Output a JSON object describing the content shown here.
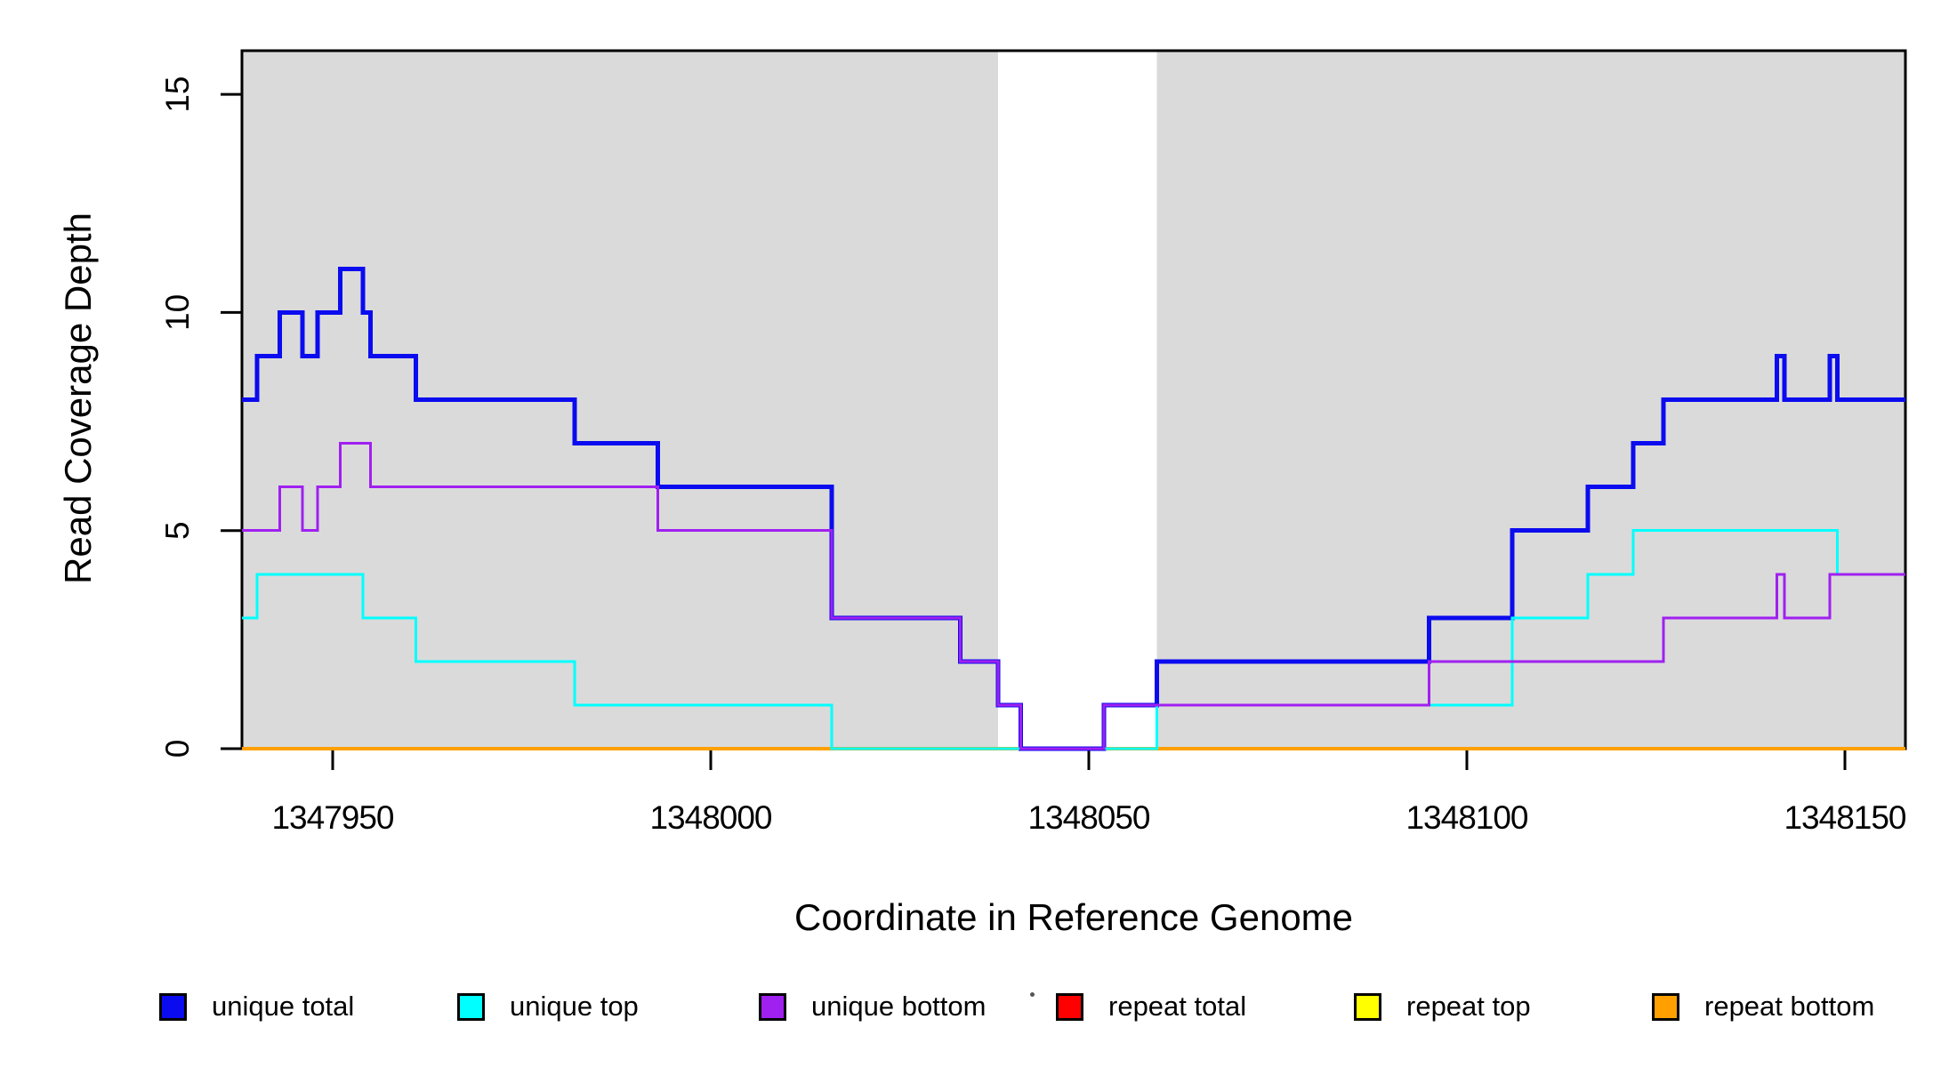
{
  "legend": {
    "items": [
      {
        "label": "unique total",
        "color": "#0B0BEF"
      },
      {
        "label": "unique top",
        "color": "#00FFFF"
      },
      {
        "label": "unique bottom",
        "color": "#A020F0"
      },
      {
        "label": "repeat total",
        "color": "#FF0000"
      },
      {
        "label": "repeat top",
        "color": "#FFFF00"
      },
      {
        "label": "repeat bottom",
        "color": "#FFA000"
      }
    ]
  },
  "chart_data": {
    "type": "line",
    "subtype": "step",
    "xlabel": "Coordinate in Reference Genome",
    "ylabel": "Read Coverage Depth",
    "xlim": [
      1347938,
      1348158
    ],
    "ylim": [
      0,
      16
    ],
    "x_ticks": [
      1347950,
      1348000,
      1348050,
      1348100,
      1348150
    ],
    "y_ticks": [
      0,
      5,
      10,
      15
    ],
    "grid": false,
    "legend_position": "bottom",
    "shade_color": "#DADADA",
    "shaded_regions": [
      [
        1347938,
        1348038
      ],
      [
        1348059,
        1348158
      ]
    ],
    "draw_order": [
      "repeat total",
      "repeat top",
      "repeat bottom",
      "unique total",
      "unique top",
      "unique bottom"
    ],
    "series": [
      {
        "name": "unique total",
        "color": "#0B0BEF",
        "width": 5,
        "points": [
          [
            1347938,
            8
          ],
          [
            1347940,
            9
          ],
          [
            1347943,
            10
          ],
          [
            1347946,
            9
          ],
          [
            1347948,
            10
          ],
          [
            1347951,
            11
          ],
          [
            1347954,
            10
          ],
          [
            1347955,
            9
          ],
          [
            1347961,
            8
          ],
          [
            1347982,
            7
          ],
          [
            1347993,
            6
          ],
          [
            1348016,
            3
          ],
          [
            1348033,
            2
          ],
          [
            1348038,
            1
          ],
          [
            1348041,
            0
          ],
          [
            1348052,
            1
          ],
          [
            1348059,
            2
          ],
          [
            1348095,
            3
          ],
          [
            1348106,
            5
          ],
          [
            1348116,
            6
          ],
          [
            1348122,
            7
          ],
          [
            1348126,
            8
          ],
          [
            1348141,
            9
          ],
          [
            1348142,
            8
          ],
          [
            1348148,
            9
          ],
          [
            1348149,
            8
          ]
        ]
      },
      {
        "name": "unique top",
        "color": "#00FFFF",
        "width": 3,
        "points": [
          [
            1347938,
            3
          ],
          [
            1347940,
            4
          ],
          [
            1347954,
            3
          ],
          [
            1347961,
            2
          ],
          [
            1347982,
            1
          ],
          [
            1348016,
            0
          ],
          [
            1348059,
            1
          ],
          [
            1348106,
            3
          ],
          [
            1348116,
            4
          ],
          [
            1348122,
            5
          ],
          [
            1348149,
            4
          ]
        ]
      },
      {
        "name": "unique bottom",
        "color": "#A020F0",
        "width": 3,
        "points": [
          [
            1347938,
            5
          ],
          [
            1347943,
            6
          ],
          [
            1347946,
            5
          ],
          [
            1347948,
            6
          ],
          [
            1347951,
            7
          ],
          [
            1347955,
            6
          ],
          [
            1347993,
            5
          ],
          [
            1348016,
            3
          ],
          [
            1348033,
            2
          ],
          [
            1348038,
            1
          ],
          [
            1348041,
            0
          ],
          [
            1348052,
            1
          ],
          [
            1348095,
            2
          ],
          [
            1348126,
            3
          ],
          [
            1348141,
            4
          ],
          [
            1348142,
            3
          ],
          [
            1348148,
            4
          ]
        ]
      },
      {
        "name": "repeat total",
        "color": "#FF0000",
        "width": 3,
        "points": [
          [
            1347938,
            0
          ]
        ]
      },
      {
        "name": "repeat top",
        "color": "#FFFF00",
        "width": 3,
        "points": [
          [
            1347938,
            0
          ]
        ]
      },
      {
        "name": "repeat bottom",
        "color": "#FFA000",
        "width": 4,
        "points": [
          [
            1347938,
            0
          ]
        ]
      }
    ]
  }
}
